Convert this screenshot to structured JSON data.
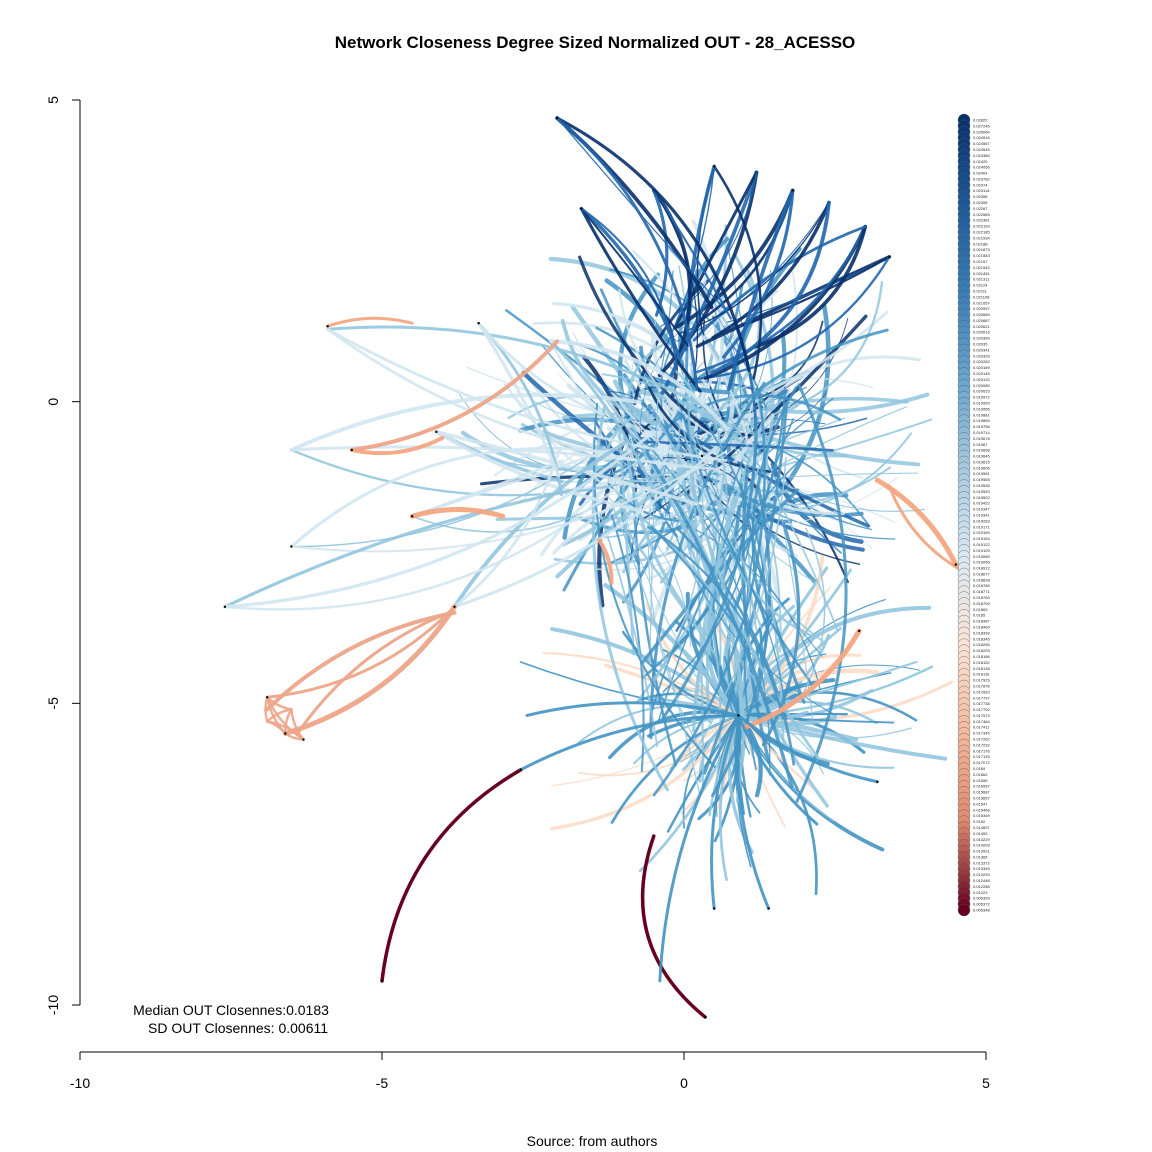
{
  "title": "Network Closeness Degree Sized Normalized OUT - 28_ACESSO",
  "caption": "Source: from authors",
  "stats": {
    "median_line": "Median OUT Closennes:0.0183",
    "sd_line": "SD OUT Closennes: 0.00611"
  },
  "colors": {
    "dark_blue": "#08306b",
    "mid_blue": "#2166ac",
    "blue": "#4393c3",
    "light_blue": "#92c5de",
    "pale_blue": "#d1e5f0",
    "pale_orange": "#fddbc7",
    "salmon": "#f4a582",
    "orange_red": "#d6604d",
    "dark_red": "#67001f"
  },
  "chart_data": {
    "type": "network",
    "xlim": [
      -10,
      5
    ],
    "ylim": [
      -10,
      5
    ],
    "x_ticks": [
      "-10",
      "-5",
      "0",
      "5"
    ],
    "y_ticks": [
      "5",
      "0",
      "-5",
      "-10"
    ],
    "legend": {
      "labels": [
        "0.02822",
        "0.027245",
        "0.025064",
        "0.024916",
        "0.024567",
        "0.024545",
        "0.024384",
        "0.02425",
        "0.024056",
        "0.02404",
        "0.023782",
        "0.02374",
        "0.023114",
        "0.02306",
        "0.02308",
        "0.02267",
        "0.022589",
        "0.022381",
        "0.022193",
        "0.022185",
        "0.021934",
        "0.02188",
        "0.021873",
        "0.021583",
        "0.02157",
        "0.021543",
        "0.021451",
        "0.021311",
        "0.02124",
        "0.02111",
        "0.021108",
        "0.021057",
        "0.020997",
        "0.020669",
        "0.020687",
        "0.020621",
        "0.020516",
        "0.020389",
        "0.02035",
        "0.020341",
        "0.020326",
        "0.020282",
        "0.020189",
        "0.020145",
        "0.020132",
        "0.020085",
        "0.020025",
        "0.019972",
        "0.019959",
        "0.019955",
        "0.019881",
        "0.019865",
        "0.019756",
        "0.019714",
        "0.019678",
        "0.01967",
        "0.019668",
        "0.019645",
        "0.019615",
        "0.019606",
        "0.019581",
        "0.019565",
        "0.019536",
        "0.019520",
        "0.019502",
        "0.019422",
        "0.019347",
        "0.019341",
        "0.019283",
        "0.019171",
        "0.019169",
        "0.019154",
        "0.019122",
        "0.019109",
        "0.019089",
        "0.019056",
        "0.018912",
        "0.018677",
        "0.018628",
        "0.018789",
        "0.018771",
        "0.018769",
        "0.018709",
        "0.01863",
        "0.0185",
        "0.018487",
        "0.018469",
        "0.018399",
        "0.018345",
        "0.018265",
        "0.018203",
        "0.018186",
        "0.018152",
        "0.018136",
        "0.018116",
        "0.017929",
        "0.017876",
        "0.017820",
        "0.017797",
        "0.017738",
        "0.017702",
        "0.017573",
        "0.017464",
        "0.017411",
        "0.017345",
        "0.017262",
        "0.017232",
        "0.017176",
        "0.017133",
        "0.017072",
        "0.0169",
        "0.01662",
        "0.01655",
        "0.016557",
        "0.015687",
        "0.015657",
        "0.01547",
        "0.015468",
        "0.015349",
        "0.0152",
        "0.014697",
        "0.01453",
        "0.014229",
        "0.014209",
        "0.013921",
        "0.01365",
        "0.013372",
        "0.013349",
        "0.013293",
        "0.012448",
        "0.012286",
        "0.01223",
        "0.005399",
        "0.005372",
        "0.005348"
      ]
    }
  }
}
